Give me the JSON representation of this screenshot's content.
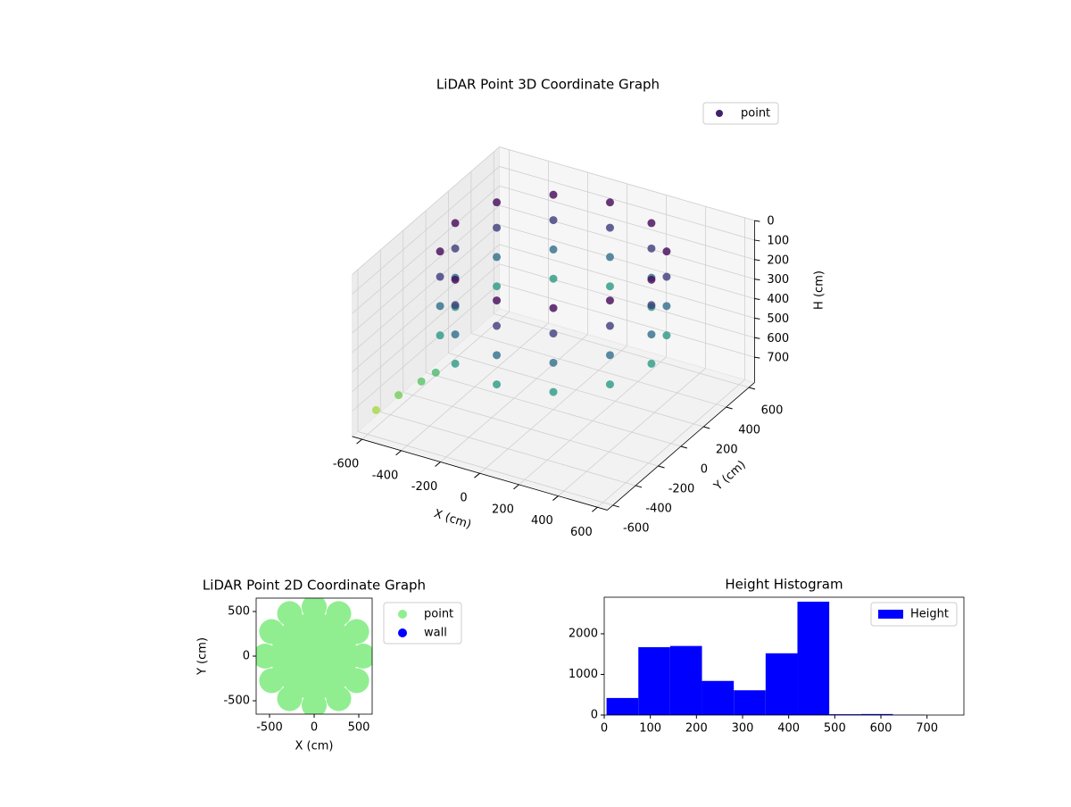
{
  "chart_data": [
    {
      "type": "scatter3d",
      "title": "LiDAR Point 3D Coordinate Graph",
      "xlabel": "X (cm)",
      "ylabel": "Y (cm)",
      "zlabel": "H (cm)",
      "xlim": [
        -650,
        650
      ],
      "ylim": [
        -650,
        650
      ],
      "zlim": [
        0,
        830
      ],
      "z_inverted": true,
      "xticks": [
        -600,
        -400,
        -200,
        0,
        200,
        400,
        600
      ],
      "yticks": [
        -600,
        -400,
        -200,
        0,
        200,
        400,
        600
      ],
      "zticks": [
        0,
        100,
        200,
        300,
        400,
        500,
        600,
        700
      ],
      "colormap": "viridis",
      "legend": "upper right",
      "series": [
        {
          "name": "point",
          "x": [
            500,
            433,
            250,
            0,
            -250,
            -433,
            -500,
            -433,
            -250,
            0,
            250,
            433,
            500,
            433,
            250,
            0,
            -250,
            -433,
            -500,
            -433,
            -250,
            0,
            250,
            433,
            500,
            433,
            250,
            0,
            -250,
            -433,
            -500,
            -433,
            -250,
            0,
            250,
            433,
            500,
            433,
            250,
            0,
            -250,
            -433,
            -500,
            -433,
            -250,
            0,
            250,
            433,
            -380,
            -430,
            -500,
            -580
          ],
          "y": [
            0,
            250,
            433,
            500,
            433,
            250,
            0,
            -250,
            -433,
            -500,
            -433,
            -250,
            0,
            250,
            433,
            500,
            433,
            250,
            0,
            -250,
            -433,
            -500,
            -433,
            -250,
            0,
            250,
            433,
            500,
            433,
            250,
            0,
            -250,
            -433,
            -500,
            -433,
            -250,
            0,
            250,
            433,
            500,
            433,
            250,
            0,
            -250,
            -433,
            -500,
            -433,
            -250,
            -380,
            -420,
            -500,
            -560
          ],
          "z": [
            20,
            20,
            20,
            20,
            20,
            20,
            20,
            20,
            20,
            20,
            20,
            20,
            150,
            150,
            150,
            150,
            150,
            150,
            150,
            150,
            150,
            150,
            150,
            150,
            300,
            300,
            300,
            300,
            300,
            300,
            300,
            300,
            300,
            300,
            300,
            300,
            450,
            450,
            450,
            450,
            450,
            450,
            450,
            450,
            450,
            450,
            450,
            450,
            560,
            600,
            650,
            720
          ]
        }
      ]
    },
    {
      "type": "scatter",
      "title": "LiDAR Point 2D Coordinate Graph",
      "xlabel": "X (cm)",
      "ylabel": "Y (cm)",
      "xlim": [
        -650,
        650
      ],
      "ylim": [
        -650,
        650
      ],
      "xticks": [
        -500,
        0,
        500
      ],
      "yticks": [
        -500,
        0,
        500
      ],
      "legend": "outside right",
      "series": [
        {
          "name": "point",
          "color": "#90ee90",
          "x": [
            0,
            200,
            100,
            -100,
            -200,
            -100,
            100,
            400,
            346,
            200,
            0,
            -200,
            -346,
            -400,
            -346,
            -200,
            0,
            200,
            346,
            550,
            476,
            275,
            0,
            -275,
            -476,
            -550,
            -476,
            -275,
            0,
            275,
            476
          ],
          "y": [
            0,
            0,
            173,
            173,
            0,
            -173,
            -173,
            0,
            200,
            346,
            400,
            346,
            200,
            0,
            -200,
            -346,
            -400,
            -346,
            -200,
            0,
            275,
            476,
            550,
            476,
            275,
            0,
            -275,
            -476,
            -550,
            -476,
            -275
          ]
        },
        {
          "name": "wall",
          "color": "#0000ff",
          "x": [],
          "y": []
        }
      ]
    },
    {
      "type": "histogram",
      "title": "Height Histogram",
      "xlim": [
        0,
        780
      ],
      "ylim": [
        0,
        2900
      ],
      "xticks": [
        0,
        100,
        200,
        300,
        400,
        500,
        600,
        700
      ],
      "yticks": [
        0,
        1000,
        2000
      ],
      "legend": "upper right",
      "series": [
        {
          "name": "Height",
          "color": "#0000ff",
          "bins": [
            5,
            74,
            143,
            212,
            281,
            350,
            419,
            488,
            557,
            626,
            695
          ],
          "values": [
            420,
            1670,
            1700,
            840,
            610,
            1520,
            2790,
            20,
            25,
            10
          ]
        }
      ]
    }
  ]
}
